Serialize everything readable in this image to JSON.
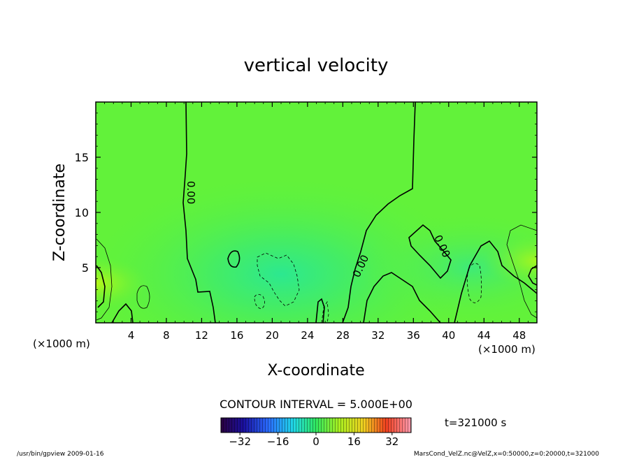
{
  "chart_data": {
    "type": "heatmap",
    "title": "vertical velocity",
    "xlabel": "X-coordinate",
    "ylabel": "Z-coordinate",
    "x_unit_left": "(×1000 m)",
    "x_unit_right": "(×1000 m)",
    "xlim": [
      0,
      50
    ],
    "ylim": [
      0,
      20
    ],
    "x_ticks": [
      4,
      8,
      12,
      16,
      20,
      24,
      28,
      32,
      36,
      40,
      44,
      48
    ],
    "y_ticks": [
      5,
      10,
      15
    ],
    "contour_labels": [
      {
        "text": "0.00",
        "x": 10.0,
        "y": 11.8
      },
      {
        "text": "0.00",
        "x": 30.0,
        "y": 5.0
      },
      {
        "text": "0.00",
        "x": 38.5,
        "y": 6.8
      }
    ],
    "contour_interval_text": "CONTOUR INTERVAL = 5.000E+00",
    "colorbar": {
      "ticks": [
        -32,
        -16,
        0,
        16,
        32
      ],
      "range": [
        -40,
        40
      ]
    },
    "time_label": "t=321000 s",
    "footer_left": "/usr/bin/gpview  2009-01-16",
    "footer_right": "MarsCond_VelZ.nc@VelZ,x=0:50000,z=0:20000,t=321000"
  }
}
